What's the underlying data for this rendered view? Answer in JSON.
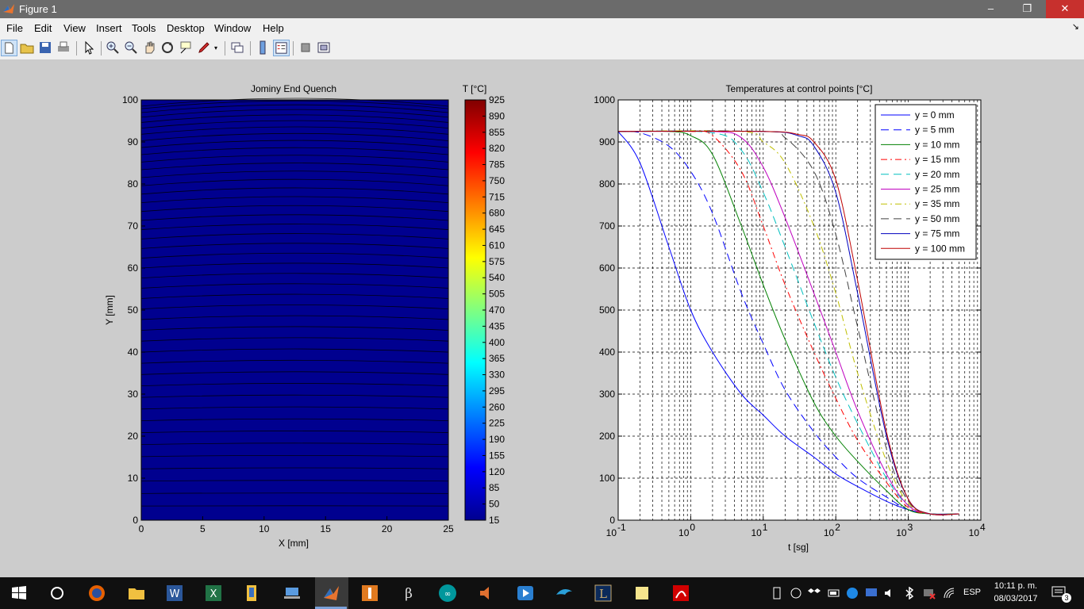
{
  "window": {
    "title": "Figure 1",
    "minimize_label": "–",
    "restore_label": "❐",
    "close_label": "✕"
  },
  "menubar": {
    "items": [
      "File",
      "Edit",
      "View",
      "Insert",
      "Tools",
      "Desktop",
      "Window",
      "Help"
    ],
    "overflow_label": "↘"
  },
  "toolbar": {
    "icons": [
      "new-figure-icon",
      "open-file-icon",
      "save-figure-icon",
      "print-figure-icon",
      "edit-plot-icon",
      "zoom-in-icon",
      "zoom-out-icon",
      "pan-icon",
      "rotate-3d-icon",
      "data-cursor-icon",
      "brush-icon",
      "link-plot-icon",
      "insert-colorbar-icon",
      "insert-legend-icon",
      "hide-plot-tools-icon",
      "show-plot-tools-icon"
    ]
  },
  "chart_data": [
    {
      "type": "heatmap",
      "title": "Jominy End Quench",
      "xlabel": "X [mm]",
      "ylabel": "Y [mm]",
      "xlim": [
        0,
        25
      ],
      "ylim": [
        0,
        100
      ],
      "x_ticks": [
        "0",
        "5",
        "10",
        "15",
        "20",
        "25"
      ],
      "y_ticks": [
        "0",
        "10",
        "20",
        "30",
        "40",
        "50",
        "60",
        "70",
        "80",
        "90",
        "100"
      ],
      "colorbar": {
        "title": "T [°C]",
        "range": [
          15,
          925
        ],
        "ticks": [
          "925",
          "890",
          "855",
          "820",
          "785",
          "750",
          "715",
          "680",
          "645",
          "610",
          "575",
          "540",
          "505",
          "470",
          "435",
          "400",
          "365",
          "330",
          "295",
          "260",
          "225",
          "190",
          "155",
          "120",
          "85",
          "50",
          "15"
        ]
      },
      "fill_color": "#00008f"
    },
    {
      "type": "line",
      "title": "Temperatures at control points [°C]",
      "xlabel": "t [sg]",
      "ylabel": "",
      "x_scale": "log",
      "xlim": [
        0.1,
        10000
      ],
      "ylim": [
        0,
        1000
      ],
      "grid": true,
      "legend_position": "top-right",
      "x_tick_base": "10",
      "x_tick_exponents": [
        "-1",
        "0",
        "1",
        "2",
        "3",
        "4"
      ],
      "y_ticks": [
        "0",
        "100",
        "200",
        "300",
        "400",
        "500",
        "600",
        "700",
        "800",
        "900",
        "1000"
      ],
      "series": [
        {
          "name": "y = 0 mm",
          "color": "#0000ff",
          "dash": "solid",
          "t": [
            0.1,
            0.2,
            0.5,
            1,
            2,
            5,
            10,
            20,
            50,
            100,
            200,
            500,
            1000,
            2000,
            5000
          ],
          "values": [
            925,
            850,
            650,
            500,
            400,
            300,
            250,
            200,
            150,
            110,
            80,
            45,
            25,
            15,
            15
          ]
        },
        {
          "name": "y = 5 mm",
          "color": "#0000ff",
          "dash": "long",
          "t": [
            0.1,
            0.2,
            0.5,
            1,
            2,
            5,
            10,
            20,
            50,
            100,
            200,
            500,
            1000,
            2000,
            5000
          ],
          "values": [
            925,
            922,
            890,
            830,
            730,
            540,
            420,
            310,
            210,
            150,
            100,
            55,
            25,
            15,
            15
          ]
        },
        {
          "name": "y = 10 mm",
          "color": "#008000",
          "dash": "solid",
          "t": [
            0.1,
            0.5,
            1,
            2,
            5,
            10,
            20,
            50,
            100,
            200,
            500,
            1000,
            2000,
            5000
          ],
          "values": [
            925,
            925,
            915,
            870,
            700,
            560,
            430,
            280,
            200,
            140,
            70,
            25,
            15,
            15
          ]
        },
        {
          "name": "y = 15 mm",
          "color": "#ff0000",
          "dash": "dashdot",
          "t": [
            0.1,
            1,
            2,
            5,
            10,
            20,
            50,
            100,
            200,
            500,
            1000,
            2000,
            5000
          ],
          "values": [
            925,
            925,
            915,
            830,
            700,
            560,
            400,
            290,
            190,
            90,
            30,
            15,
            15
          ]
        },
        {
          "name": "y = 20 mm",
          "color": "#00bfbf",
          "dash": "long",
          "t": [
            0.1,
            2,
            5,
            10,
            20,
            50,
            100,
            200,
            500,
            1000,
            2000,
            5000
          ],
          "values": [
            925,
            922,
            880,
            780,
            650,
            470,
            340,
            230,
            100,
            35,
            15,
            15
          ]
        },
        {
          "name": "y = 25 mm",
          "color": "#bf00bf",
          "dash": "solid",
          "t": [
            0.1,
            2,
            5,
            10,
            20,
            50,
            100,
            200,
            500,
            1000,
            2000,
            5000
          ],
          "values": [
            925,
            925,
            910,
            840,
            720,
            540,
            400,
            260,
            110,
            35,
            15,
            15
          ]
        },
        {
          "name": "y = 35 mm",
          "color": "#bfbf00",
          "dash": "dashdot",
          "t": [
            0.1,
            5,
            10,
            20,
            50,
            100,
            200,
            500,
            1000,
            2000,
            5000
          ],
          "values": [
            925,
            925,
            900,
            850,
            700,
            540,
            350,
            140,
            40,
            15,
            15
          ]
        },
        {
          "name": "y = 50 mm",
          "color": "#404040",
          "dash": "long",
          "t": [
            0.1,
            10,
            20,
            50,
            100,
            200,
            500,
            1000,
            2000,
            5000
          ],
          "values": [
            925,
            925,
            910,
            830,
            680,
            460,
            170,
            45,
            15,
            15
          ]
        },
        {
          "name": "y = 75 mm",
          "color": "#0000bf",
          "dash": "solid",
          "t": [
            0.1,
            10,
            30,
            50,
            100,
            200,
            500,
            1000,
            2000,
            5000
          ],
          "values": [
            925,
            925,
            915,
            890,
            780,
            540,
            200,
            50,
            15,
            15
          ]
        },
        {
          "name": "y = 100 mm",
          "color": "#bf0000",
          "dash": "solid",
          "t": [
            0.1,
            10,
            30,
            50,
            100,
            200,
            500,
            1000,
            2000,
            5000
          ],
          "values": [
            925,
            925,
            918,
            900,
            810,
            570,
            210,
            50,
            15,
            15
          ]
        }
      ]
    }
  ],
  "taskbar": {
    "apps": [
      "windows-start-icon",
      "cortana-icon",
      "firefox-icon",
      "file-explorer-icon",
      "word-icon",
      "excel-icon",
      "folder-icon",
      "laptop-icon",
      "matlab-icon",
      "app-orange-icon",
      "beta-app-icon",
      "arduino-icon",
      "speaker-app-icon",
      "media-player-icon",
      "dolphin-icon",
      "league-icon",
      "sticky-notes-icon",
      "acrobat-icon"
    ],
    "language": "ESP",
    "time": "10:11 p. m.",
    "date": "08/03/2017",
    "notification_count": "3"
  },
  "colors": {
    "titlebar": "#6b6b6b",
    "figure_bg": "#cccccc",
    "close_button": "#c7302d",
    "contour_fill": "#00008f"
  }
}
